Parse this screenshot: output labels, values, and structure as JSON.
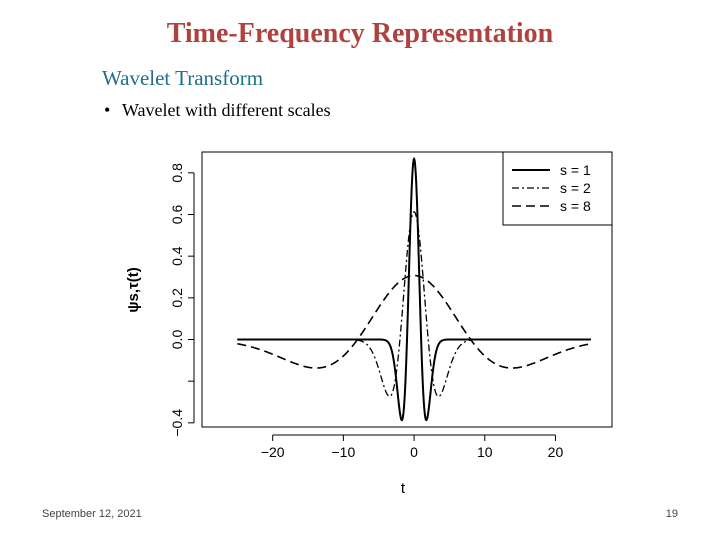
{
  "slide": {
    "title": "Time-Frequency Representation",
    "subtitle": "Wavelet Transform",
    "bullet_marker": "•",
    "bullet": "Wavelet with different scales",
    "footer_date": "September 12, 2021",
    "footer_page": "19"
  },
  "colors": {
    "title": "#b0413e",
    "subtitle": "#1f6e8c",
    "line": "#000000"
  },
  "chart_data": {
    "type": "line",
    "xlabel": "t",
    "ylabel": "ψs,τ(t)",
    "xlim": [
      -30,
      28
    ],
    "ylim": [
      -0.42,
      0.9
    ],
    "xticks": [
      -20,
      -10,
      0,
      10,
      20
    ],
    "xtick_labels": [
      "−20",
      "−10",
      "0",
      "10",
      "20"
    ],
    "yticks": [
      -0.4,
      -0.2,
      0.0,
      0.2,
      0.4,
      0.6,
      0.8
    ],
    "ytick_labels": [
      "−0.4",
      "",
      "0.0",
      "0.2",
      "0.4",
      "0.6",
      "0.8"
    ],
    "grid": false,
    "legend_position": "top-right",
    "x_range": [
      -25,
      25
    ],
    "series": [
      {
        "name": "s = 1",
        "style": "solid",
        "scale": 1,
        "amplitude": 0.867
      },
      {
        "name": "s = 2",
        "style": "dashdot",
        "scale": 2,
        "amplitude": 0.613
      },
      {
        "name": "s = 8",
        "style": "dashed",
        "scale": 8,
        "amplitude": 0.307
      }
    ]
  }
}
